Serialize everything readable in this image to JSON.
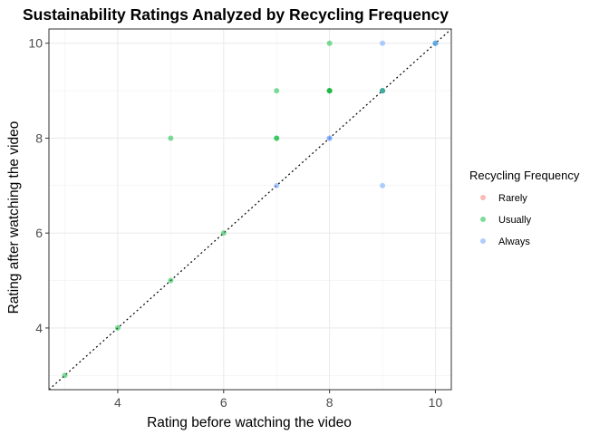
{
  "chart_data": {
    "type": "scatter",
    "title": "Sustainability Ratings Analyzed by Recycling Frequency",
    "xlabel": "Rating before watching the video",
    "ylabel": "Rating after watching the video",
    "xlim": [
      2.7,
      10.3
    ],
    "ylim": [
      2.7,
      10.3
    ],
    "x_ticks": [
      4,
      6,
      8,
      10
    ],
    "y_ticks": [
      4,
      6,
      8,
      10
    ],
    "grid": true,
    "reference_line": "y = x",
    "legend": {
      "title": "Recycling Frequency",
      "placement": "right",
      "entries": [
        "Rarely",
        "Usually",
        "Always"
      ]
    },
    "series": [
      {
        "name": "Rarely",
        "color": "#F8766D",
        "points": [
          [
            8,
            9
          ],
          [
            9,
            9
          ]
        ]
      },
      {
        "name": "Usually",
        "color": "#00BA38",
        "points": [
          [
            3,
            3
          ],
          [
            4,
            4
          ],
          [
            5,
            5
          ],
          [
            6,
            6
          ],
          [
            5,
            8
          ],
          [
            7,
            8
          ],
          [
            7,
            8
          ],
          [
            7,
            9
          ],
          [
            8,
            9
          ],
          [
            8,
            9
          ],
          [
            8,
            9
          ],
          [
            8,
            10
          ],
          [
            9,
            9
          ],
          [
            9,
            9
          ],
          [
            9,
            9
          ],
          [
            10,
            10
          ]
        ]
      },
      {
        "name": "Always",
        "color": "#619CFF",
        "points": [
          [
            7,
            7
          ],
          [
            8,
            8
          ],
          [
            8,
            8
          ],
          [
            9,
            7
          ],
          [
            9,
            10
          ],
          [
            9,
            9
          ],
          [
            10,
            10
          ],
          [
            10,
            10
          ]
        ]
      }
    ]
  }
}
